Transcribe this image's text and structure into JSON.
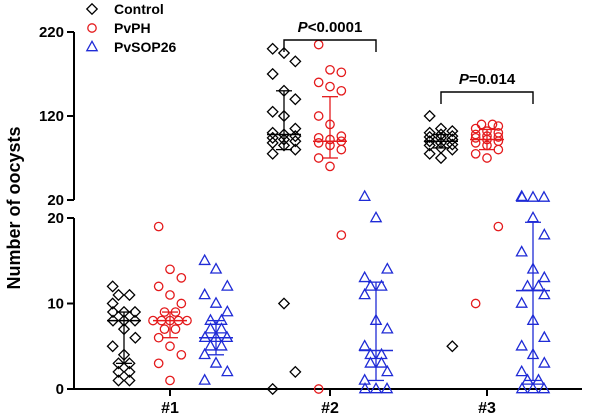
{
  "chart_data": {
    "type": "scatter",
    "ylabel": "Number of oocysts",
    "categories": [
      "#1",
      "#2",
      "#3"
    ],
    "y_axis_upper": {
      "range": [
        20,
        220
      ],
      "ticks": [
        "20",
        "120",
        "220"
      ]
    },
    "y_axis_lower": {
      "range": [
        0,
        20
      ],
      "ticks": [
        "0",
        "10",
        "20"
      ]
    },
    "colors": {
      "Control": "#000000",
      "PvPH": "#e41a1c",
      "PvSOP26": "#1f2bd6"
    },
    "series": [
      {
        "name": "Control",
        "marker": "diamond-icon",
        "groups": [
          {
            "category": "#1",
            "values": [
              12,
              11,
              11,
              10,
              9,
              9,
              9,
              8,
              8,
              8,
              7,
              6,
              5,
              4,
              3,
              3,
              2,
              2,
              1,
              1
            ],
            "median": 8,
            "q1": 3,
            "q3": 9
          },
          {
            "category": "#2",
            "values": [
              200,
              195,
              185,
              170,
              150,
              140,
              125,
              120,
              105,
              100,
              98,
              96,
              94,
              92,
              90,
              88,
              85,
              80,
              75,
              10,
              2,
              0
            ],
            "median": 98,
            "q1": 80,
            "q3": 150
          },
          {
            "category": "#3",
            "values": [
              120,
              105,
              102,
              100,
              98,
              96,
              95,
              94,
              92,
              90,
              88,
              86,
              85,
              82,
              80,
              75,
              70,
              5
            ],
            "median": 90,
            "q1": 82,
            "q3": 98
          }
        ]
      },
      {
        "name": "PvPH",
        "marker": "circle-icon",
        "groups": [
          {
            "category": "#1",
            "values": [
              19,
              14,
              13,
              12,
              11,
              10,
              9,
              9,
              8,
              8,
              8,
              8,
              8,
              7,
              7,
              6,
              5,
              4,
              3,
              1
            ],
            "median": 8,
            "q1": 6,
            "q3": 9
          },
          {
            "category": "#2",
            "values": [
              205,
              175,
              172,
              160,
              155,
              150,
              120,
              110,
              96,
              94,
              92,
              90,
              88,
              85,
              80,
              70,
              60,
              18,
              0
            ],
            "median": 90,
            "q1": 70,
            "q3": 143
          },
          {
            "category": "#3",
            "values": [
              110,
              110,
              108,
              105,
              102,
              100,
              98,
              96,
              95,
              94,
              92,
              90,
              88,
              85,
              80,
              75,
              70,
              19,
              10
            ],
            "median": 92,
            "q1": 80,
            "q3": 104
          }
        ]
      },
      {
        "name": "PvSOP26",
        "marker": "triangle-icon",
        "groups": [
          {
            "category": "#1",
            "values": [
              15,
              14,
              12,
              11,
              10,
              9,
              8,
              8,
              7,
              7,
              6,
              6,
              6,
              5,
              5,
              4,
              3,
              2,
              1
            ],
            "median": 6,
            "q1": 4,
            "q3": 8
          },
          {
            "category": "#2",
            "values": [
              24,
              20,
              14,
              13,
              12,
              12,
              11,
              8,
              7,
              5,
              4,
              4,
              3,
              3,
              2,
              1,
              0,
              0,
              0
            ],
            "median": 4.5,
            "q1": 1,
            "q3": 12.5
          },
          {
            "category": "#3",
            "values": [
              24,
              23,
              23,
              23,
              20,
              18,
              16,
              14,
              13,
              12,
              12,
              11,
              10,
              8,
              6,
              5,
              4,
              3,
              2,
              1,
              1,
              0,
              0,
              0
            ],
            "median": 11.5,
            "q1": 1,
            "q3": 19.5
          }
        ]
      }
    ],
    "legend": {
      "placement": "top-left",
      "entries": [
        "Control",
        "PvPH",
        "PvSOP26"
      ]
    },
    "annotations": [
      {
        "text_italic": "P",
        "text": "<0.0001",
        "from": "#2 Control",
        "to": "#2 PvSOP26"
      },
      {
        "text_italic": "P",
        "text": "=0.014",
        "from": "#3 Control",
        "to": "#3 PvSOP26"
      }
    ],
    "grid": false
  }
}
